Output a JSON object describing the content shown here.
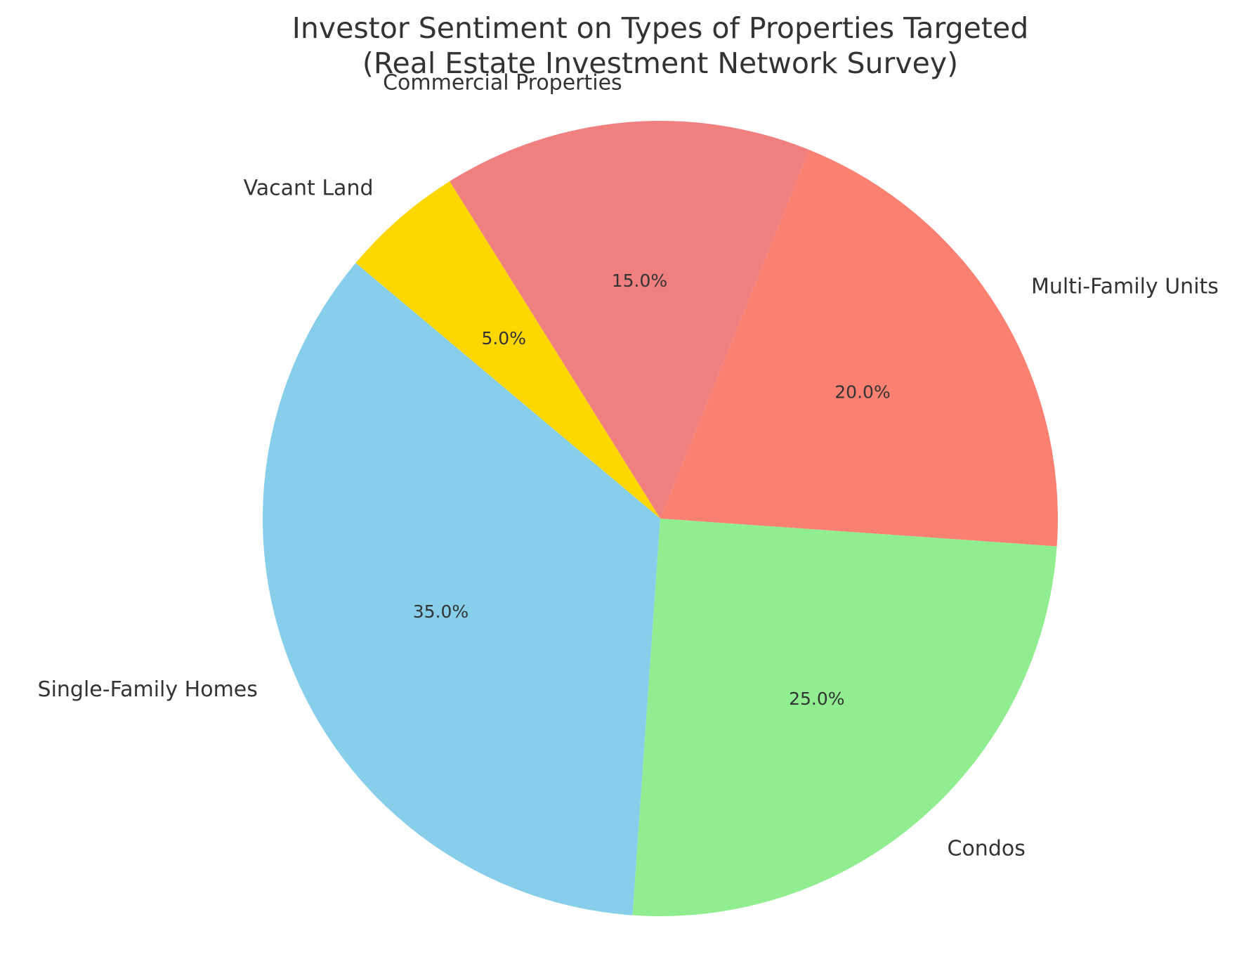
{
  "chart_data": {
    "type": "pie",
    "title_lines": [
      "Investor Sentiment on Types of Properties Targeted",
      "(Real Estate Investment Network Survey)"
    ],
    "start_angle_deg": 140,
    "direction": "counterclockwise",
    "slices": [
      {
        "label": "Single-Family Homes",
        "value": 35,
        "pct_label": "35.0%",
        "color": "#87CEEB"
      },
      {
        "label": "Condos",
        "value": 25,
        "pct_label": "25.0%",
        "color": "#90EE90"
      },
      {
        "label": "Multi-Family Units",
        "value": 20,
        "pct_label": "20.0%",
        "color": "#FA8072"
      },
      {
        "label": "Commercial Properties",
        "value": 15,
        "pct_label": "15.0%",
        "color": "#F08080"
      },
      {
        "label": "Vacant Land",
        "value": 5,
        "pct_label": "5.0%",
        "color": "#FFD700"
      }
    ]
  }
}
